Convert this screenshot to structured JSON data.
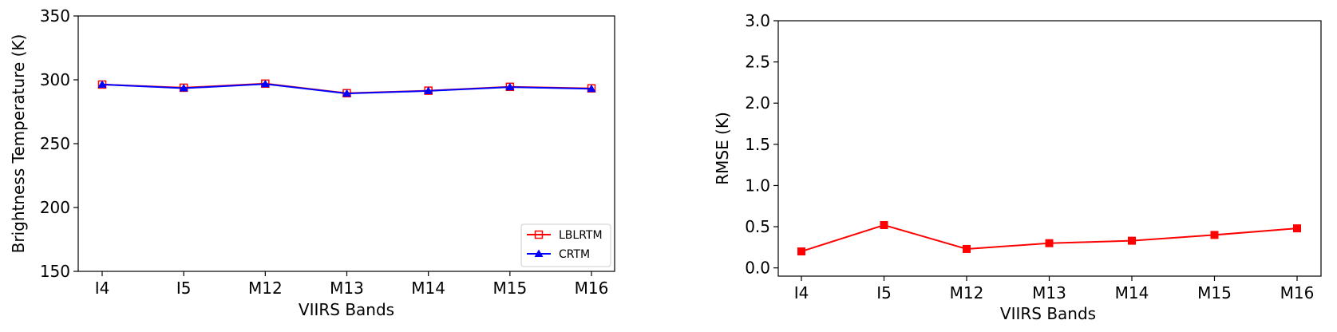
{
  "chart_data": [
    {
      "type": "line",
      "categories": [
        "I4",
        "I5",
        "M12",
        "M13",
        "M14",
        "M15",
        "M16"
      ],
      "xlabel": "VIIRS Bands",
      "ylabel": "Brightness Temperature (K)",
      "ylim": [
        150,
        350
      ],
      "yticks": [
        "150",
        "200",
        "250",
        "300",
        "350"
      ],
      "grid": false,
      "legend_position": "lower-right",
      "series": [
        {
          "name": "LBLRTM",
          "color": "#ff0000",
          "marker": "open-square",
          "values": [
            296.3,
            293.8,
            297.0,
            289.5,
            291.5,
            294.5,
            293.3
          ]
        },
        {
          "name": "CRTM",
          "color": "#0000ff",
          "marker": "filled-triangle",
          "values": [
            296.3,
            293.4,
            296.7,
            289.3,
            291.3,
            294.3,
            293.0
          ]
        }
      ]
    },
    {
      "type": "line",
      "categories": [
        "I4",
        "I5",
        "M12",
        "M13",
        "M14",
        "M15",
        "M16"
      ],
      "xlabel": "VIIRS Bands",
      "ylabel": "RMSE (K)",
      "ylim": [
        -0.1,
        3.0
      ],
      "yticks": [
        "0.0",
        "0.5",
        "1.0",
        "1.5",
        "2.0",
        "2.5",
        "3.0"
      ],
      "grid": false,
      "series": [
        {
          "color": "#ff0000",
          "marker": "filled-square",
          "values": [
            0.2,
            0.52,
            0.23,
            0.3,
            0.33,
            0.4,
            0.48
          ]
        }
      ]
    }
  ]
}
